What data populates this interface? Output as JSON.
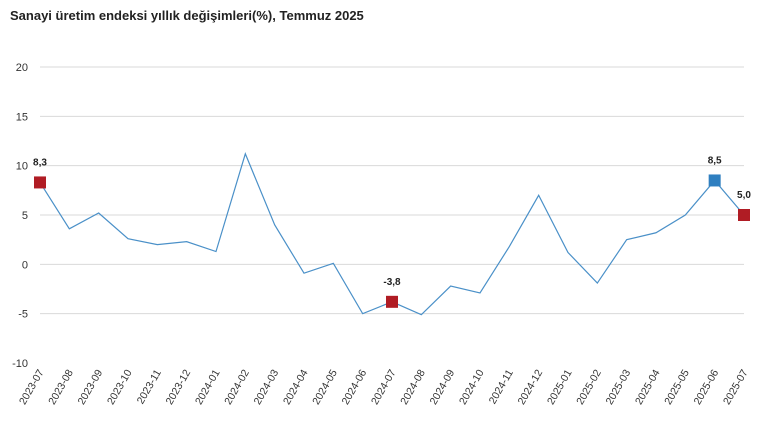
{
  "title": "Sanayi üretim endeksi yıllık değişimleri(%), Temmuz 2025",
  "colors": {
    "line": "#4a90c8",
    "marker_red": "#b01c24",
    "marker_blue": "#2f7fc0",
    "grid": "#d9d9d9"
  },
  "chart_data": {
    "type": "line",
    "title": "Sanayi üretim endeksi yıllık değişimleri(%), Temmuz 2025",
    "xlabel": "",
    "ylabel": "",
    "ylim": [
      -10,
      20
    ],
    "yticks": [
      -10,
      -5,
      0,
      5,
      10,
      15,
      20
    ],
    "grid": "horizontal",
    "legend": "none",
    "categories": [
      "2023-07",
      "2023-08",
      "2023-09",
      "2023-10",
      "2023-11",
      "2023-12",
      "2024-01",
      "2024-02",
      "2024-03",
      "2024-04",
      "2024-05",
      "2024-06",
      "2024-07",
      "2024-08",
      "2024-09",
      "2024-10",
      "2024-11",
      "2024-12",
      "2025-01",
      "2025-02",
      "2025-03",
      "2025-04",
      "2025-05",
      "2025-06",
      "2025-07"
    ],
    "series": [
      {
        "values": [
          8.3,
          3.6,
          5.2,
          2.6,
          2.0,
          2.3,
          1.3,
          11.2,
          4.0,
          -0.9,
          0.1,
          -5.0,
          -3.8,
          -5.1,
          -2.2,
          -2.9,
          1.8,
          7.0,
          1.2,
          -1.9,
          2.5,
          3.2,
          5.0,
          8.5,
          5.0
        ]
      }
    ],
    "annotations": [
      {
        "index": 0,
        "label": "8,3",
        "marker": "red"
      },
      {
        "index": 12,
        "label": "-3,8",
        "marker": "red"
      },
      {
        "index": 23,
        "label": "8,5",
        "marker": "blue"
      },
      {
        "index": 24,
        "label": "5,0",
        "marker": "red"
      }
    ]
  }
}
